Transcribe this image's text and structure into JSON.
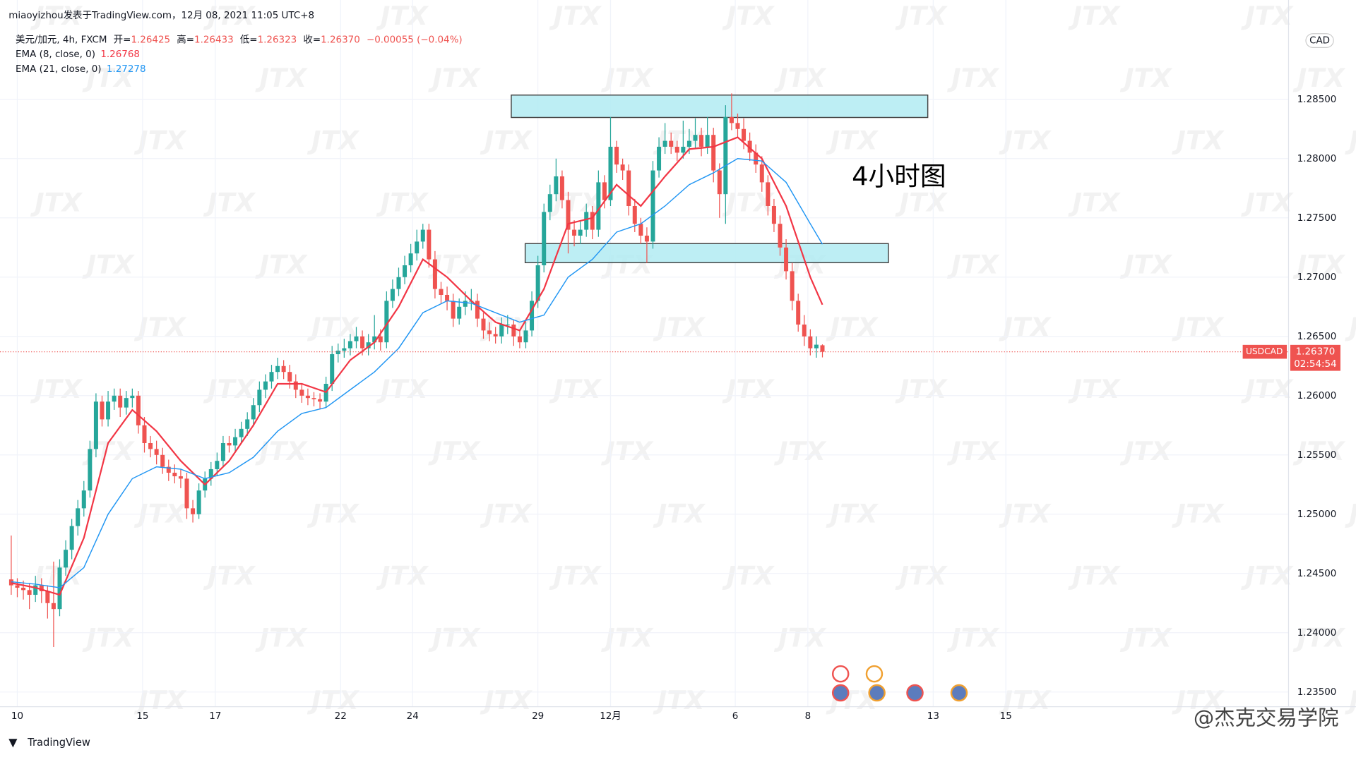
{
  "chart_data": {
    "type": "candlestick",
    "header": "miaoyizhou发表于TradingView.com，12月 08, 2021 11:05 UTC+8",
    "symbol": "美元/加元, 4h, FXCM",
    "ohlc_legend": [
      {
        "label": "开=",
        "value": "1.26425"
      },
      {
        "label": "高=",
        "value": "1.26433"
      },
      {
        "label": "低=",
        "value": "1.26323"
      },
      {
        "label": "收=",
        "value": "1.26370"
      }
    ],
    "change": "−0.00055 (−0.04%)",
    "annotation": "4小时图",
    "watermark": "JTX",
    "credit": "@杰克交易学院",
    "brand": "TradingView",
    "currency": "CAD",
    "up_color": "#26a69a",
    "down_color": "#ef5350",
    "grid": true,
    "xlim": [
      -1.857,
      211
    ],
    "ylim": [
      1.23376,
      1.29338
    ],
    "xticks": [
      {
        "value": 1,
        "label": "10"
      },
      {
        "value": 21.7,
        "label": "15"
      },
      {
        "value": 33.7,
        "label": "17"
      },
      {
        "value": 54.4,
        "label": "22"
      },
      {
        "value": 66.3,
        "label": "24"
      },
      {
        "value": 87,
        "label": "29"
      },
      {
        "value": 99,
        "label": "12月"
      },
      {
        "value": 119.6,
        "label": "6"
      },
      {
        "value": 131.6,
        "label": "8"
      },
      {
        "value": 152.3,
        "label": "13"
      },
      {
        "value": 164.3,
        "label": "15"
      }
    ],
    "yticks": [
      {
        "value": 1.235,
        "label": "1.23500"
      },
      {
        "value": 1.24,
        "label": "1.24000"
      },
      {
        "value": 1.245,
        "label": "1.24500"
      },
      {
        "value": 1.25,
        "label": "1.25000"
      },
      {
        "value": 1.255,
        "label": "1.25500"
      },
      {
        "value": 1.26,
        "label": "1.26000"
      },
      {
        "value": 1.265,
        "label": "1.26500"
      },
      {
        "value": 1.27,
        "label": "1.27000"
      },
      {
        "value": 1.275,
        "label": "1.27500"
      },
      {
        "value": 1.28,
        "label": "1.28000"
      },
      {
        "value": 1.285,
        "label": "1.28500"
      }
    ],
    "candles": [
      [
        1.2445,
        1.2482,
        1.2432,
        1.244
      ],
      [
        1.244,
        1.2446,
        1.243,
        1.2438
      ],
      [
        1.2438,
        1.2444,
        1.2428,
        1.2436
      ],
      [
        1.2436,
        1.2442,
        1.242,
        1.2432
      ],
      [
        1.2432,
        1.2448,
        1.2426,
        1.244
      ],
      [
        1.244,
        1.2446,
        1.2425,
        1.2435
      ],
      [
        1.2435,
        1.244,
        1.2412,
        1.2425
      ],
      [
        1.2425,
        1.246,
        1.2388,
        1.242
      ],
      [
        1.242,
        1.2462,
        1.2414,
        1.2455
      ],
      [
        1.2455,
        1.2478,
        1.2448,
        1.247
      ],
      [
        1.247,
        1.2496,
        1.2462,
        1.249
      ],
      [
        1.249,
        1.2512,
        1.2482,
        1.2505
      ],
      [
        1.2505,
        1.2528,
        1.2498,
        1.252
      ],
      [
        1.252,
        1.2562,
        1.2514,
        1.2555
      ],
      [
        1.2555,
        1.2602,
        1.2548,
        1.2595
      ],
      [
        1.2595,
        1.26,
        1.2574,
        1.258
      ],
      [
        1.258,
        1.2604,
        1.2574,
        1.2595
      ],
      [
        1.2595,
        1.2606,
        1.2588,
        1.26
      ],
      [
        1.26,
        1.2606,
        1.2582,
        1.259
      ],
      [
        1.259,
        1.2604,
        1.2584,
        1.2598
      ],
      [
        1.2598,
        1.2606,
        1.259,
        1.26
      ],
      [
        1.26,
        1.2604,
        1.2568,
        1.2575
      ],
      [
        1.2575,
        1.2582,
        1.2552,
        1.256
      ],
      [
        1.256,
        1.2566,
        1.2548,
        1.2555
      ],
      [
        1.2555,
        1.2562,
        1.2542,
        1.255
      ],
      [
        1.255,
        1.2556,
        1.2534,
        1.254
      ],
      [
        1.254,
        1.2546,
        1.2528,
        1.2535
      ],
      [
        1.2535,
        1.2542,
        1.2526,
        1.2532
      ],
      [
        1.2532,
        1.2538,
        1.2522,
        1.253
      ],
      [
        1.253,
        1.2535,
        1.2496,
        1.2505
      ],
      [
        1.2505,
        1.2512,
        1.2493,
        1.25
      ],
      [
        1.25,
        1.2526,
        1.2496,
        1.252
      ],
      [
        1.252,
        1.2536,
        1.2514,
        1.253
      ],
      [
        1.253,
        1.2544,
        1.2524,
        1.2538
      ],
      [
        1.2538,
        1.2552,
        1.2532,
        1.2545
      ],
      [
        1.2545,
        1.2566,
        1.254,
        1.256
      ],
      [
        1.256,
        1.2566,
        1.2552,
        1.2558
      ],
      [
        1.2558,
        1.2572,
        1.2552,
        1.2565
      ],
      [
        1.2565,
        1.2578,
        1.256,
        1.2572
      ],
      [
        1.2572,
        1.2586,
        1.2566,
        1.258
      ],
      [
        1.258,
        1.2598,
        1.2574,
        1.2592
      ],
      [
        1.2592,
        1.2612,
        1.2586,
        1.2605
      ],
      [
        1.2605,
        1.2618,
        1.2598,
        1.2612
      ],
      [
        1.2612,
        1.2626,
        1.2606,
        1.262
      ],
      [
        1.262,
        1.2632,
        1.2614,
        1.2625
      ],
      [
        1.2625,
        1.263,
        1.2614,
        1.262
      ],
      [
        1.262,
        1.2626,
        1.2606,
        1.2612
      ],
      [
        1.2612,
        1.2618,
        1.2598,
        1.2605
      ],
      [
        1.2605,
        1.261,
        1.2594,
        1.26
      ],
      [
        1.26,
        1.2606,
        1.2592,
        1.2598
      ],
      [
        1.2598,
        1.2603,
        1.2591,
        1.2597
      ],
      [
        1.2597,
        1.2602,
        1.2589,
        1.2595
      ],
      [
        1.2595,
        1.2616,
        1.259,
        1.261
      ],
      [
        1.261,
        1.2642,
        1.2604,
        1.2635
      ],
      [
        1.2635,
        1.2644,
        1.2628,
        1.2638
      ],
      [
        1.2638,
        1.2648,
        1.2632,
        1.264
      ],
      [
        1.264,
        1.2652,
        1.2634,
        1.2646
      ],
      [
        1.2646,
        1.2658,
        1.264,
        1.265
      ],
      [
        1.265,
        1.2655,
        1.2634,
        1.264
      ],
      [
        1.264,
        1.2652,
        1.2634,
        1.2645
      ],
      [
        1.2645,
        1.2668,
        1.2639,
        1.265
      ],
      [
        1.265,
        1.2656,
        1.2638,
        1.2645
      ],
      [
        1.2645,
        1.2688,
        1.264,
        1.268
      ],
      [
        1.268,
        1.2698,
        1.2674,
        1.269
      ],
      [
        1.269,
        1.2708,
        1.2684,
        1.27
      ],
      [
        1.27,
        1.2718,
        1.2694,
        1.271
      ],
      [
        1.271,
        1.2728,
        1.2704,
        1.272
      ],
      [
        1.272,
        1.274,
        1.2714,
        1.273
      ],
      [
        1.273,
        1.2745,
        1.2724,
        1.274
      ],
      [
        1.274,
        1.2745,
        1.2708,
        1.2715
      ],
      [
        1.2715,
        1.2722,
        1.2682,
        1.269
      ],
      [
        1.269,
        1.2696,
        1.2678,
        1.2685
      ],
      [
        1.2685,
        1.2692,
        1.2672,
        1.268
      ],
      [
        1.268,
        1.2686,
        1.2658,
        1.2665
      ],
      [
        1.2665,
        1.2682,
        1.266,
        1.2675
      ],
      [
        1.2675,
        1.2688,
        1.2668,
        1.268
      ],
      [
        1.268,
        1.269,
        1.2672,
        1.268
      ],
      [
        1.268,
        1.2686,
        1.2658,
        1.2665
      ],
      [
        1.2665,
        1.267,
        1.2648,
        1.2655
      ],
      [
        1.2655,
        1.2662,
        1.2646,
        1.2652
      ],
      [
        1.2652,
        1.2658,
        1.2644,
        1.265
      ],
      [
        1.265,
        1.2666,
        1.2644,
        1.266
      ],
      [
        1.266,
        1.2668,
        1.2652,
        1.266
      ],
      [
        1.266,
        1.2664,
        1.2642,
        1.265
      ],
      [
        1.265,
        1.2656,
        1.264,
        1.2645
      ],
      [
        1.2645,
        1.2662,
        1.264,
        1.2655
      ],
      [
        1.2655,
        1.2688,
        1.265,
        1.268
      ],
      [
        1.268,
        1.2718,
        1.2674,
        1.271
      ],
      [
        1.271,
        1.2762,
        1.2704,
        1.2755
      ],
      [
        1.2755,
        1.2778,
        1.2748,
        1.277
      ],
      [
        1.277,
        1.28,
        1.2764,
        1.2785
      ],
      [
        1.2785,
        1.279,
        1.2758,
        1.2765
      ],
      [
        1.2765,
        1.2772,
        1.272,
        1.274
      ],
      [
        1.274,
        1.2748,
        1.2726,
        1.2735
      ],
      [
        1.2735,
        1.2748,
        1.2728,
        1.274
      ],
      [
        1.274,
        1.2762,
        1.2734,
        1.2755
      ],
      [
        1.2755,
        1.276,
        1.2732,
        1.274
      ],
      [
        1.274,
        1.279,
        1.2734,
        1.278
      ],
      [
        1.278,
        1.2786,
        1.2758,
        1.2765
      ],
      [
        1.2765,
        1.2835,
        1.276,
        1.281
      ],
      [
        1.281,
        1.2815,
        1.2788,
        1.2795
      ],
      [
        1.2795,
        1.28,
        1.2782,
        1.279
      ],
      [
        1.279,
        1.2795,
        1.2752,
        1.276
      ],
      [
        1.276,
        1.2766,
        1.2738,
        1.2745
      ],
      [
        1.2745,
        1.275,
        1.2728,
        1.2735
      ],
      [
        1.2735,
        1.2742,
        1.2712,
        1.273
      ],
      [
        1.273,
        1.2798,
        1.2724,
        1.279
      ],
      [
        1.279,
        1.2818,
        1.2784,
        1.281
      ],
      [
        1.281,
        1.283,
        1.2804,
        1.2815
      ],
      [
        1.2815,
        1.2822,
        1.2804,
        1.281
      ],
      [
        1.281,
        1.2815,
        1.2798,
        1.2805
      ],
      [
        1.2805,
        1.2832,
        1.28,
        1.281
      ],
      [
        1.281,
        1.2825,
        1.2804,
        1.2815
      ],
      [
        1.2815,
        1.2834,
        1.2808,
        1.282
      ],
      [
        1.282,
        1.2826,
        1.2802,
        1.281
      ],
      [
        1.281,
        1.2835,
        1.2804,
        1.282
      ],
      [
        1.282,
        1.2826,
        1.278,
        1.279
      ],
      [
        1.279,
        1.2796,
        1.275,
        1.277
      ],
      [
        1.277,
        1.2845,
        1.2745,
        1.2835
      ],
      [
        1.2835,
        1.2855,
        1.2824,
        1.283
      ],
      [
        1.283,
        1.2838,
        1.2818,
        1.2825
      ],
      [
        1.2825,
        1.2834,
        1.2808,
        1.2815
      ],
      [
        1.2815,
        1.2822,
        1.2798,
        1.2805
      ],
      [
        1.2805,
        1.2812,
        1.2788,
        1.2795
      ],
      [
        1.2795,
        1.2802,
        1.2772,
        1.278
      ],
      [
        1.278,
        1.2786,
        1.2752,
        1.276
      ],
      [
        1.276,
        1.2766,
        1.2738,
        1.2745
      ],
      [
        1.2745,
        1.2752,
        1.2718,
        1.2725
      ],
      [
        1.2725,
        1.2732,
        1.2698,
        1.2705
      ],
      [
        1.2705,
        1.2712,
        1.2672,
        1.268
      ],
      [
        1.268,
        1.2686,
        1.2654,
        1.266
      ],
      [
        1.266,
        1.2668,
        1.2642,
        1.265
      ],
      [
        1.265,
        1.2656,
        1.2634,
        1.264
      ],
      [
        1.264,
        1.265,
        1.2632,
        1.2643
      ],
      [
        1.26425,
        1.26433,
        1.26323,
        1.2637
      ]
    ],
    "series": [
      {
        "name": "EMA (8, close, 0)",
        "color": "#f23645",
        "value_label": "1.26768",
        "x": [
          0,
          4,
          8,
          12,
          16,
          20,
          24,
          28,
          32,
          36,
          40,
          44,
          48,
          52,
          56,
          60,
          64,
          68,
          72,
          76,
          80,
          84,
          88,
          92,
          96,
          100,
          104,
          108,
          112,
          116,
          120,
          124,
          128,
          132,
          134
        ],
        "values": [
          1.2442,
          1.2438,
          1.2432,
          1.248,
          1.256,
          1.2588,
          1.257,
          1.2545,
          1.2525,
          1.2545,
          1.2575,
          1.261,
          1.261,
          1.2603,
          1.263,
          1.2645,
          1.2675,
          1.2715,
          1.27,
          1.268,
          1.2662,
          1.2655,
          1.269,
          1.2745,
          1.275,
          1.2778,
          1.276,
          1.2785,
          1.2808,
          1.281,
          1.2818,
          1.28,
          1.276,
          1.27,
          1.26768
        ]
      },
      {
        "name": "EMA (21, close, 0)",
        "color": "#2196f3",
        "value_label": "1.27278",
        "x": [
          0,
          4,
          8,
          12,
          16,
          20,
          24,
          28,
          32,
          36,
          40,
          44,
          48,
          52,
          56,
          60,
          64,
          68,
          72,
          76,
          80,
          84,
          88,
          92,
          96,
          100,
          104,
          108,
          112,
          116,
          120,
          124,
          128,
          132,
          134
        ],
        "values": [
          1.2443,
          1.2441,
          1.2438,
          1.2455,
          1.25,
          1.253,
          1.254,
          1.2538,
          1.253,
          1.2535,
          1.2548,
          1.257,
          1.2585,
          1.259,
          1.2605,
          1.262,
          1.264,
          1.267,
          1.268,
          1.2678,
          1.267,
          1.2662,
          1.2668,
          1.27,
          1.2715,
          1.2738,
          1.2745,
          1.276,
          1.2778,
          1.2788,
          1.28,
          1.2798,
          1.278,
          1.2745,
          1.27278
        ]
      }
    ],
    "zones": [
      {
        "x": [
          82.6,
          151.4
        ],
        "y": [
          1.28347,
          1.28536
        ]
      },
      {
        "x": [
          84.9,
          144.9
        ],
        "y": [
          1.27122,
          1.27283
        ]
      }
    ],
    "last_price": {
      "symbol": "USDCAD",
      "value": 1.2637,
      "label": "1.26370",
      "countdown": "02:54:54"
    }
  }
}
